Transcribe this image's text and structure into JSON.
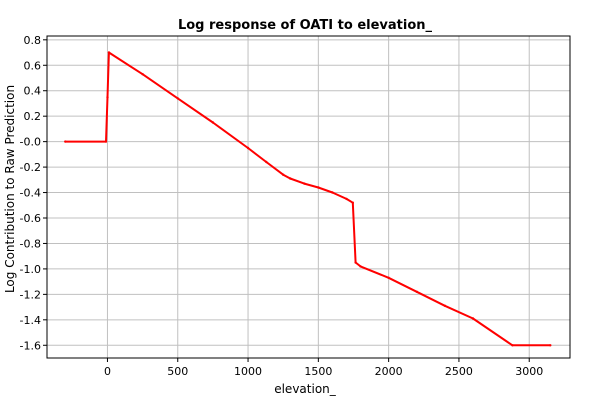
{
  "chart_data": {
    "type": "line",
    "title": "Log response of OATI to elevation_",
    "xlabel": "elevation_",
    "ylabel": "Log Contribution to Raw Prediction",
    "xlim": [
      -430,
      3290
    ],
    "ylim": [
      -1.7,
      0.83
    ],
    "x_ticks": [
      0,
      500,
      1000,
      1500,
      2000,
      2500,
      3000
    ],
    "y_ticks": [
      0.8,
      0.6,
      0.4,
      0.2,
      0.0,
      -0.2,
      -0.4,
      -0.6,
      -0.8,
      -1.0,
      -1.2,
      -1.4,
      -1.6
    ],
    "x_tick_labels": [
      "0",
      "500",
      "1000",
      "1500",
      "2000",
      "2500",
      "3000"
    ],
    "y_tick_labels": [
      "0.8",
      "0.6",
      "0.4",
      "0.2",
      "-0.0",
      "-0.2",
      "-0.4",
      "-0.6",
      "-0.8",
      "-1.0",
      "-1.2",
      "-1.4",
      "-1.6"
    ],
    "grid": true,
    "series": [
      {
        "color": "#ff0000",
        "x": [
          -300,
          -10,
          0,
          10,
          250,
          500,
          750,
          1000,
          1130,
          1250,
          1300,
          1400,
          1500,
          1600,
          1700,
          1745,
          1765,
          1800,
          2000,
          2200,
          2400,
          2600,
          2880,
          3150
        ],
        "y": [
          0.0,
          0.0,
          0.35,
          0.7,
          0.53,
          0.34,
          0.15,
          -0.05,
          -0.16,
          -0.26,
          -0.29,
          -0.33,
          -0.36,
          -0.4,
          -0.45,
          -0.48,
          -0.95,
          -0.98,
          -1.07,
          -1.18,
          -1.29,
          -1.39,
          -1.6,
          -1.6
        ]
      }
    ]
  }
}
